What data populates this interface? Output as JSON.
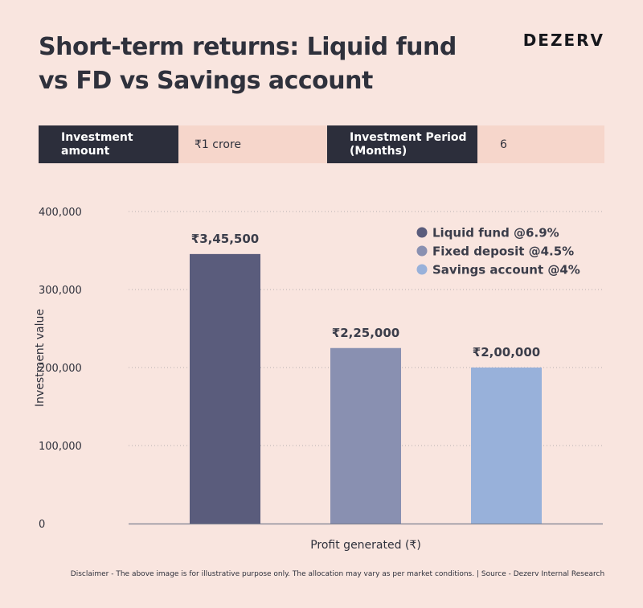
{
  "title_line1": "Short-term returns: Liquid fund",
  "title_line2": "vs FD vs Savings account",
  "logo": "DEZERV",
  "info": {
    "label1": "Investment amount",
    "value1": "₹1 crore",
    "label2": "Investment Period (Months)",
    "value2": "6"
  },
  "chart_data": {
    "type": "bar",
    "xlabel": "Profit generated (₹)",
    "ylabel": "Investment value",
    "ylim": [
      0,
      400000
    ],
    "yticks": [
      0,
      100000,
      200000,
      300000,
      400000
    ],
    "ytick_labels": [
      "0",
      "100,000",
      "200,000",
      "300,000",
      "400,000"
    ],
    "grid": true,
    "legend_position": "top-right",
    "categories": [
      "Liquid fund @6.9%",
      "Fixed deposit @4.5%",
      "Savings account @4%"
    ],
    "values": [
      345500,
      225000,
      200000
    ],
    "value_labels": [
      "₹3,45,500",
      "₹2,25,000",
      "₹2,00,000"
    ],
    "colors": [
      "#5a5c7c",
      "#8990b1",
      "#98b1da"
    ]
  },
  "disclaimer": "Disclaimer - The above image is for illustrative purpose only. The allocation may vary as per market conditions. | Source - Dezerv Internal Research"
}
